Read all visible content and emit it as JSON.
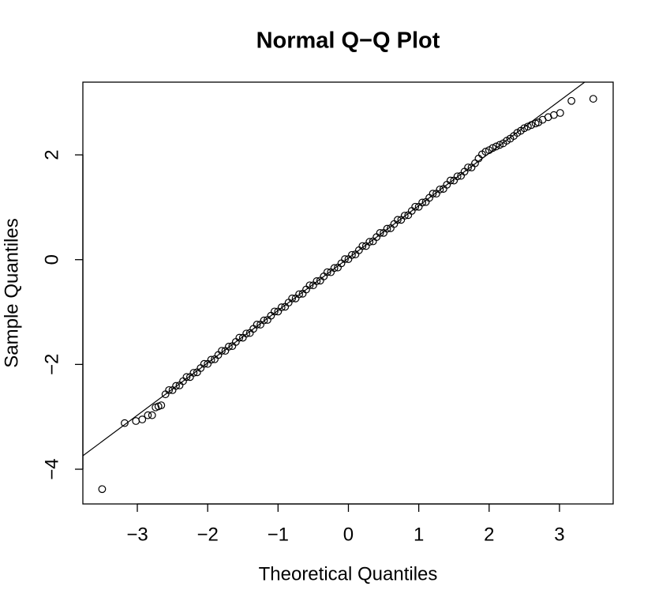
{
  "chart_data": {
    "type": "scatter",
    "title": "Normal Q−Q Plot",
    "x_label": "Theoretical Quantiles",
    "y_label": "Sample Quantiles",
    "xlim": [
      -3.774,
      3.763
    ],
    "ylim": [
      -4.663,
      3.388
    ],
    "xticks": [
      {
        "value": -3,
        "label": "−3"
      },
      {
        "value": -2,
        "label": "−2"
      },
      {
        "value": -1,
        "label": "−1"
      },
      0,
      1,
      2,
      3
    ],
    "yticks": [
      {
        "value": -4,
        "label": "−4"
      },
      {
        "value": -2,
        "label": "−2"
      },
      0,
      2
    ],
    "reference_line": {
      "intercept": 0.03,
      "slope": 1.0
    },
    "color": "#000000",
    "x": [
      -3.5,
      -3.18,
      -3.02,
      -2.93,
      -2.85,
      -2.79,
      -2.74,
      -2.7,
      -2.66,
      -2.6,
      -2.55,
      -2.5,
      -2.45,
      -2.4,
      -2.35,
      -2.3,
      -2.25,
      -2.2,
      -2.15,
      -2.1,
      -2.05,
      -2.0,
      -1.95,
      -1.9,
      -1.85,
      -1.8,
      -1.75,
      -1.7,
      -1.65,
      -1.6,
      -1.55,
      -1.5,
      -1.45,
      -1.4,
      -1.35,
      -1.3,
      -1.25,
      -1.2,
      -1.15,
      -1.1,
      -1.05,
      -1.0,
      -0.95,
      -0.9,
      -0.85,
      -0.8,
      -0.75,
      -0.7,
      -0.65,
      -0.6,
      -0.55,
      -0.5,
      -0.45,
      -0.4,
      -0.35,
      -0.3,
      -0.25,
      -0.2,
      -0.15,
      -0.1,
      -0.05,
      0.0,
      0.05,
      0.1,
      0.15,
      0.2,
      0.25,
      0.3,
      0.35,
      0.4,
      0.45,
      0.5,
      0.55,
      0.6,
      0.65,
      0.7,
      0.75,
      0.8,
      0.85,
      0.9,
      0.95,
      1.0,
      1.05,
      1.1,
      1.15,
      1.2,
      1.25,
      1.3,
      1.35,
      1.4,
      1.45,
      1.5,
      1.55,
      1.6,
      1.65,
      1.7,
      1.75,
      1.8,
      1.85,
      1.9,
      1.95,
      2.0,
      2.05,
      2.1,
      2.15,
      2.2,
      2.25,
      2.3,
      2.35,
      2.4,
      2.45,
      2.5,
      2.55,
      2.6,
      2.66,
      2.7,
      2.76,
      2.84,
      2.92,
      3.01,
      3.17,
      3.48
    ],
    "values": [
      -4.38,
      -3.12,
      -3.08,
      -3.05,
      -2.97,
      -2.97,
      -2.82,
      -2.8,
      -2.78,
      -2.57,
      -2.49,
      -2.49,
      -2.41,
      -2.4,
      -2.32,
      -2.24,
      -2.24,
      -2.16,
      -2.15,
      -2.07,
      -1.99,
      -1.99,
      -1.91,
      -1.9,
      -1.82,
      -1.74,
      -1.74,
      -1.66,
      -1.65,
      -1.57,
      -1.49,
      -1.49,
      -1.41,
      -1.4,
      -1.32,
      -1.24,
      -1.24,
      -1.16,
      -1.15,
      -1.07,
      -0.99,
      -0.99,
      -0.91,
      -0.9,
      -0.82,
      -0.74,
      -0.74,
      -0.66,
      -0.65,
      -0.57,
      -0.49,
      -0.49,
      -0.41,
      -0.4,
      -0.32,
      -0.24,
      -0.24,
      -0.16,
      -0.15,
      -0.07,
      0.01,
      0.01,
      0.09,
      0.1,
      0.18,
      0.26,
      0.26,
      0.34,
      0.35,
      0.43,
      0.51,
      0.51,
      0.59,
      0.6,
      0.68,
      0.76,
      0.76,
      0.84,
      0.85,
      0.93,
      1.01,
      1.01,
      1.09,
      1.1,
      1.18,
      1.26,
      1.26,
      1.34,
      1.35,
      1.43,
      1.51,
      1.51,
      1.59,
      1.6,
      1.68,
      1.76,
      1.76,
      1.84,
      1.93,
      2.01,
      2.06,
      2.09,
      2.13,
      2.16,
      2.19,
      2.22,
      2.27,
      2.31,
      2.36,
      2.42,
      2.46,
      2.51,
      2.54,
      2.57,
      2.6,
      2.62,
      2.67,
      2.72,
      2.76,
      2.8,
      3.03,
      3.07
    ]
  }
}
